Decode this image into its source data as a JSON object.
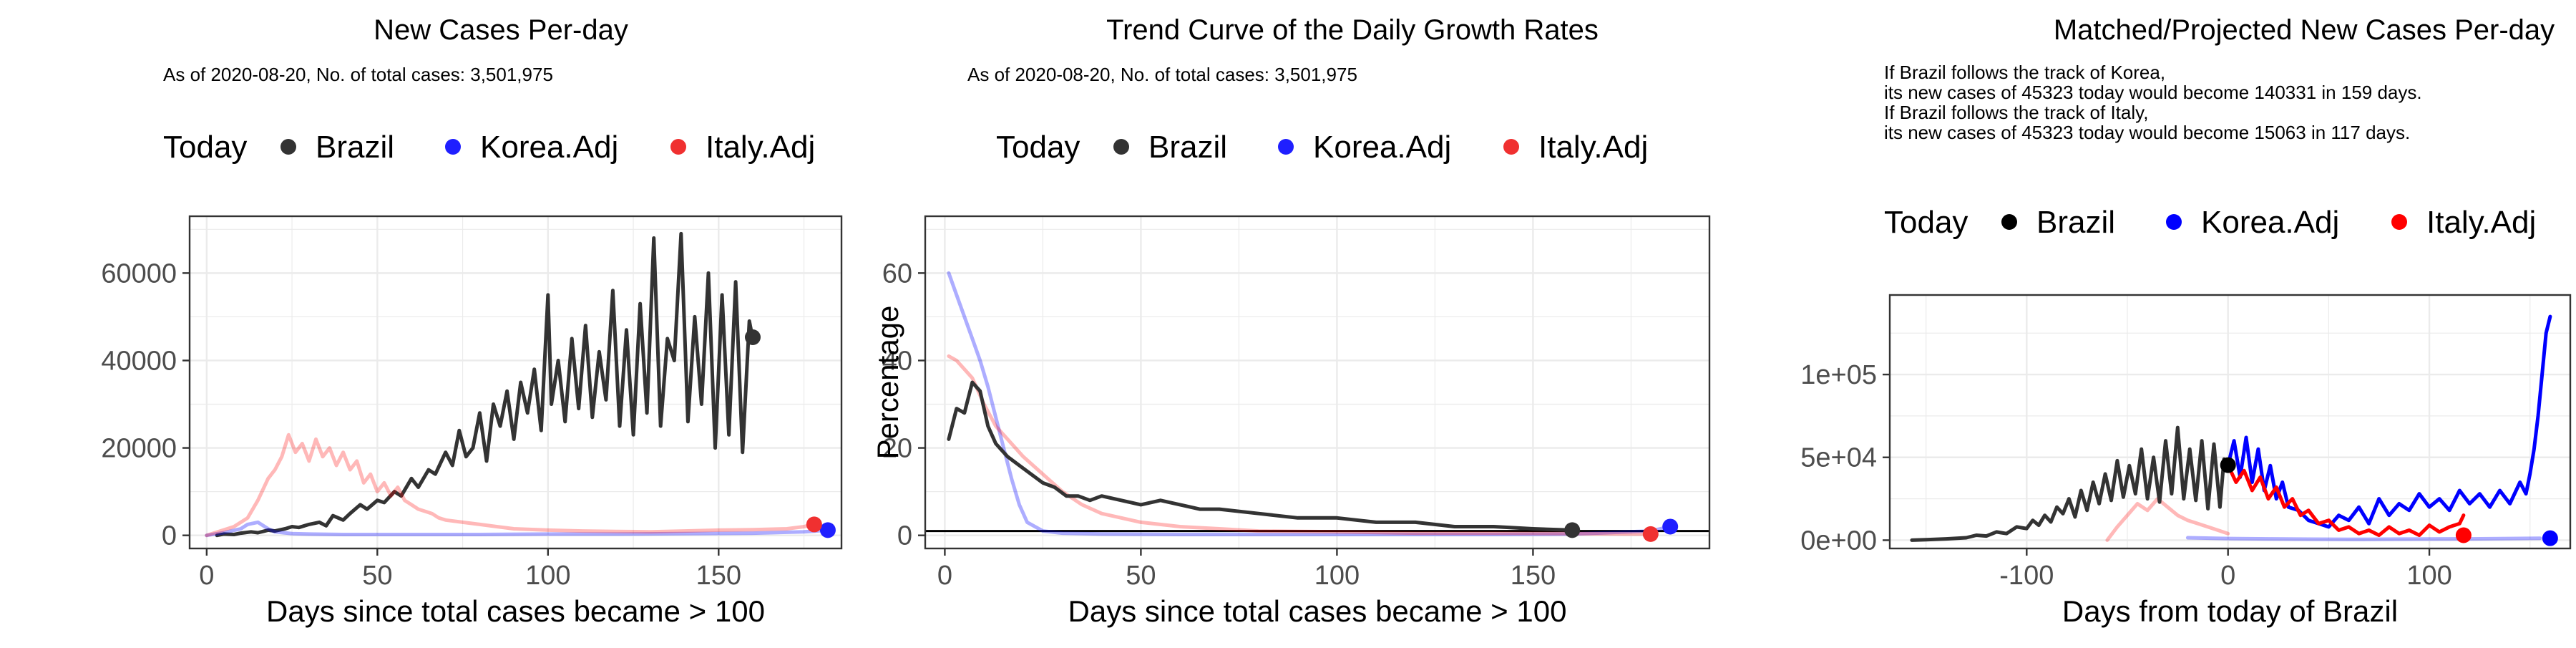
{
  "chart_data": [
    {
      "type": "line",
      "title": "New Cases Per-day",
      "subtitle": [
        "As of 2020-08-20, No. of total cases: 3,501,975"
      ],
      "xlabel": "Days since total cases became > 100",
      "ylabel": "",
      "xlim": [
        -5,
        186
      ],
      "ylim": [
        -3000,
        73000
      ],
      "xticks": [
        0,
        50,
        100,
        150
      ],
      "yticks": [
        0,
        20000,
        40000,
        60000
      ],
      "ytick_labels": [
        "0",
        "20000",
        "40000",
        "60000"
      ],
      "grid": true,
      "legend": {
        "title": "Today",
        "position": "top",
        "entries": [
          "Brazil",
          "Korea.Adj",
          "Italy.Adj"
        ]
      },
      "series": [
        {
          "name": "Brazil",
          "color": "#333333",
          "opacity": 1,
          "width": 5,
          "x": [
            3,
            5,
            8,
            10,
            13,
            15,
            18,
            20,
            23,
            25,
            27,
            30,
            33,
            35,
            37,
            40,
            42,
            45,
            47,
            50,
            52,
            55,
            57,
            60,
            62,
            65,
            67,
            70,
            72,
            74,
            76,
            78,
            80,
            82,
            84,
            86,
            88,
            90,
            92,
            94,
            96,
            98,
            100,
            101,
            103,
            105,
            107,
            109,
            111,
            113,
            115,
            117,
            119,
            121,
            123,
            125,
            127,
            129,
            131,
            133,
            135,
            137,
            139,
            141,
            143,
            145,
            147,
            149,
            151,
            153,
            155,
            157,
            159,
            160,
            161
          ],
          "y": [
            0,
            300,
            200,
            500,
            800,
            600,
            1200,
            1000,
            1500,
            2000,
            1800,
            2500,
            3000,
            2200,
            4500,
            3500,
            5000,
            7000,
            6000,
            8000,
            7500,
            10000,
            9000,
            13000,
            11000,
            15000,
            14000,
            19000,
            16000,
            24000,
            18000,
            20000,
            28000,
            17000,
            30000,
            25000,
            33000,
            22000,
            35000,
            28000,
            38000,
            24000,
            55000,
            30000,
            40000,
            26000,
            45000,
            29000,
            48000,
            27000,
            42000,
            31000,
            56000,
            25000,
            47000,
            23000,
            53000,
            28000,
            68000,
            25000,
            45000,
            40000,
            69000,
            26000,
            50000,
            30000,
            60000,
            20000,
            55000,
            23000,
            58000,
            19000,
            49000,
            45000,
            46000
          ]
        },
        {
          "name": "Korea.Adj",
          "color": "#0000ff",
          "opacity": 0.32,
          "width": 5,
          "x": [
            0,
            5,
            10,
            12,
            15,
            18,
            20,
            25,
            30,
            40,
            60,
            80,
            100,
            120,
            140,
            160,
            175,
            182
          ],
          "y": [
            0,
            600,
            1500,
            2500,
            3000,
            1500,
            800,
            400,
            300,
            200,
            200,
            200,
            300,
            300,
            400,
            500,
            800,
            1200
          ]
        },
        {
          "name": "Italy.Adj",
          "color": "#ff0000",
          "opacity": 0.28,
          "width": 5,
          "x": [
            0,
            4,
            8,
            12,
            15,
            18,
            20,
            22,
            24,
            26,
            28,
            30,
            32,
            34,
            36,
            38,
            40,
            42,
            44,
            46,
            48,
            50,
            52,
            54,
            56,
            58,
            60,
            62,
            64,
            66,
            68,
            70,
            75,
            80,
            85,
            90,
            100,
            110,
            120,
            130,
            140,
            150,
            160,
            170,
            175,
            178
          ],
          "y": [
            0,
            1000,
            2000,
            4000,
            8000,
            13000,
            15000,
            18000,
            23000,
            19000,
            21000,
            17000,
            22000,
            18000,
            20000,
            16000,
            19000,
            15000,
            17000,
            12000,
            14000,
            10000,
            12000,
            9000,
            11000,
            8000,
            7000,
            6000,
            5500,
            5000,
            4000,
            3500,
            3000,
            2500,
            2000,
            1500,
            1200,
            1000,
            900,
            800,
            1000,
            1200,
            1300,
            1500,
            2000,
            2500
          ]
        }
      ],
      "today_points": [
        {
          "name": "Brazil",
          "x": 160,
          "y": 45323,
          "color": "#333333"
        },
        {
          "name": "Korea.Adj",
          "x": 182,
          "y": 1200,
          "color": "#1f1fff"
        },
        {
          "name": "Italy.Adj",
          "x": 178,
          "y": 2500,
          "color": "#f03030"
        }
      ]
    },
    {
      "type": "line",
      "title": "Trend Curve of the Daily Growth Rates",
      "subtitle": [
        "As of 2020-08-20, No. of total cases: 3,501,975"
      ],
      "xlabel": "Days since total cases became > 100",
      "ylabel": "Percentage",
      "xlim": [
        -5,
        195
      ],
      "ylim": [
        -3,
        73
      ],
      "xticks": [
        0,
        50,
        100,
        150
      ],
      "yticks": [
        0,
        20,
        40,
        60
      ],
      "ytick_labels": [
        "0",
        "20",
        "40",
        "60"
      ],
      "hline": 1,
      "grid": true,
      "legend": {
        "title": "Today",
        "position": "top",
        "entries": [
          "Brazil",
          "Korea.Adj",
          "Italy.Adj"
        ]
      },
      "series": [
        {
          "name": "Korea.Adj",
          "color": "#0000ff",
          "opacity": 0.32,
          "width": 5,
          "x": [
            1,
            3,
            5,
            7,
            9,
            11,
            13,
            15,
            17,
            19,
            21,
            25,
            30,
            40,
            60,
            80,
            100,
            120,
            140,
            160,
            180,
            185
          ],
          "y": [
            60,
            55,
            50,
            45,
            40,
            34,
            27,
            20,
            13,
            7,
            3,
            1,
            0.5,
            0.3,
            0.2,
            0.2,
            0.2,
            0.2,
            0.2,
            0.3,
            1,
            2
          ]
        },
        {
          "name": "Italy.Adj",
          "color": "#ff0000",
          "opacity": 0.28,
          "width": 5,
          "x": [
            1,
            3,
            5,
            7,
            10,
            13,
            16,
            20,
            25,
            30,
            35,
            40,
            50,
            60,
            70,
            80,
            100,
            120,
            140,
            160,
            178
          ],
          "y": [
            41,
            40,
            38,
            36,
            30,
            25,
            22,
            18,
            14,
            10,
            7,
            5,
            3,
            2,
            1.5,
            1,
            0.8,
            0.5,
            0.5,
            0.4,
            0.3
          ]
        },
        {
          "name": "Brazil",
          "color": "#333333",
          "opacity": 1,
          "width": 5,
          "x": [
            1,
            3,
            5,
            7,
            9,
            11,
            13,
            16,
            19,
            22,
            25,
            28,
            31,
            34,
            37,
            40,
            45,
            50,
            55,
            60,
            65,
            70,
            80,
            90,
            100,
            110,
            120,
            130,
            140,
            150,
            160
          ],
          "y": [
            22,
            29,
            28,
            35,
            33,
            25,
            21,
            18,
            16,
            14,
            12,
            11,
            9,
            9,
            8,
            9,
            8,
            7,
            8,
            7,
            6,
            6,
            5,
            4,
            4,
            3,
            3,
            2,
            2,
            1.5,
            1.2
          ]
        }
      ],
      "today_points": [
        {
          "name": "Brazil",
          "x": 160,
          "y": 1.2,
          "color": "#333333"
        },
        {
          "name": "Korea.Adj",
          "x": 185,
          "y": 2,
          "color": "#1f1fff"
        },
        {
          "name": "Italy.Adj",
          "x": 180,
          "y": 0.3,
          "color": "#f03030"
        }
      ]
    },
    {
      "type": "line",
      "title": "Matched/Projected New Cases Per-day",
      "subtitle": [
        "If Brazil follows the track of Korea,",
        "its new cases of 45323 today would become 140331 in 159 days.",
        "If Brazil follows the track of Italy,",
        "its new cases of 45323 today would become 15063 in 117 days."
      ],
      "xlabel": "Days from today of Brazil",
      "ylabel": "",
      "xlim": [
        -168,
        170
      ],
      "ylim": [
        -5000,
        148000
      ],
      "xticks": [
        -100,
        0,
        100
      ],
      "yticks": [
        0,
        50000,
        100000
      ],
      "ytick_labels": [
        "0e+00",
        "5e+04",
        "1e+05"
      ],
      "grid": true,
      "legend": {
        "title": "Today",
        "position": "top",
        "entries": [
          "Brazil",
          "Korea.Adj",
          "Italy.Adj"
        ]
      },
      "series": [
        {
          "name": "Italy.Adj",
          "color": "#ff0000",
          "opacity": 0.28,
          "width": 5,
          "x": [
            -60,
            -55,
            -50,
            -45,
            -40,
            -35,
            -30,
            -25,
            -20,
            -15,
            -10,
            -5,
            0
          ],
          "y": [
            0,
            8000,
            15000,
            22000,
            18000,
            25000,
            20000,
            15000,
            12000,
            10000,
            8000,
            6000,
            4000
          ]
        },
        {
          "name": "Korea.Adj",
          "color": "#0000ff",
          "opacity": 0.32,
          "width": 5,
          "x": [
            -20,
            0,
            20,
            40,
            60,
            80,
            100,
            120,
            140,
            155
          ],
          "y": [
            1500,
            1000,
            800,
            600,
            500,
            600,
            700,
            800,
            1000,
            1200
          ]
        },
        {
          "name": "Brazil",
          "color": "#333333",
          "opacity": 1,
          "width": 5,
          "x": [
            -157,
            -150,
            -140,
            -130,
            -125,
            -120,
            -115,
            -110,
            -105,
            -100,
            -97,
            -94,
            -91,
            -88,
            -85,
            -82,
            -79,
            -76,
            -73,
            -70,
            -67,
            -64,
            -61,
            -58,
            -55,
            -52,
            -49,
            -46,
            -43,
            -40,
            -37,
            -34,
            -31,
            -28,
            -25,
            -22,
            -19,
            -16,
            -13,
            -10,
            -7,
            -4,
            -2,
            0
          ],
          "y": [
            0,
            300,
            800,
            1500,
            3000,
            2500,
            5000,
            4000,
            8000,
            7000,
            12000,
            9000,
            15000,
            11000,
            20000,
            16000,
            25000,
            14000,
            30000,
            18000,
            35000,
            22000,
            40000,
            24000,
            48000,
            26000,
            45000,
            28000,
            55000,
            25000,
            50000,
            23000,
            60000,
            28000,
            68000,
            25000,
            55000,
            24000,
            60000,
            19000,
            58000,
            20000,
            49000,
            45323
          ]
        },
        {
          "name": "Korea.Adj",
          "color": "#0000ff",
          "opacity": 1,
          "width": 5,
          "x": [
            0,
            3,
            6,
            9,
            12,
            15,
            18,
            21,
            24,
            27,
            30,
            35,
            40,
            45,
            50,
            55,
            60,
            65,
            70,
            75,
            80,
            85,
            90,
            95,
            100,
            105,
            110,
            115,
            120,
            125,
            130,
            135,
            140,
            145,
            148,
            150,
            152,
            154,
            156,
            158,
            160
          ],
          "y": [
            45323,
            60000,
            38000,
            62000,
            35000,
            55000,
            30000,
            45000,
            25000,
            35000,
            20000,
            18000,
            12000,
            10000,
            8000,
            15000,
            12000,
            20000,
            10000,
            25000,
            15000,
            22000,
            18000,
            28000,
            20000,
            25000,
            18000,
            30000,
            22000,
            28000,
            20000,
            30000,
            22000,
            35000,
            28000,
            40000,
            55000,
            75000,
            100000,
            125000,
            135000
          ]
        },
        {
          "name": "Italy.Adj",
          "color": "#ff0000",
          "opacity": 1,
          "width": 5,
          "x": [
            0,
            4,
            8,
            12,
            16,
            20,
            24,
            28,
            32,
            36,
            40,
            45,
            50,
            55,
            60,
            65,
            70,
            75,
            80,
            85,
            90,
            95,
            100,
            105,
            110,
            115,
            117
          ],
          "y": [
            45323,
            35000,
            42000,
            30000,
            38000,
            25000,
            32000,
            20000,
            25000,
            15000,
            18000,
            10000,
            12000,
            6000,
            8000,
            4000,
            6000,
            3000,
            8000,
            4000,
            6000,
            3000,
            9000,
            5000,
            8000,
            10000,
            15063
          ]
        }
      ],
      "today_points": [
        {
          "name": "Brazil",
          "x": 0,
          "y": 45323,
          "color": "#000000"
        },
        {
          "name": "Korea.Adj",
          "x": 160,
          "y": 1200,
          "color": "#0000ff"
        },
        {
          "name": "Italy.Adj",
          "x": 117,
          "y": 3000,
          "color": "#ff0000"
        }
      ]
    }
  ]
}
